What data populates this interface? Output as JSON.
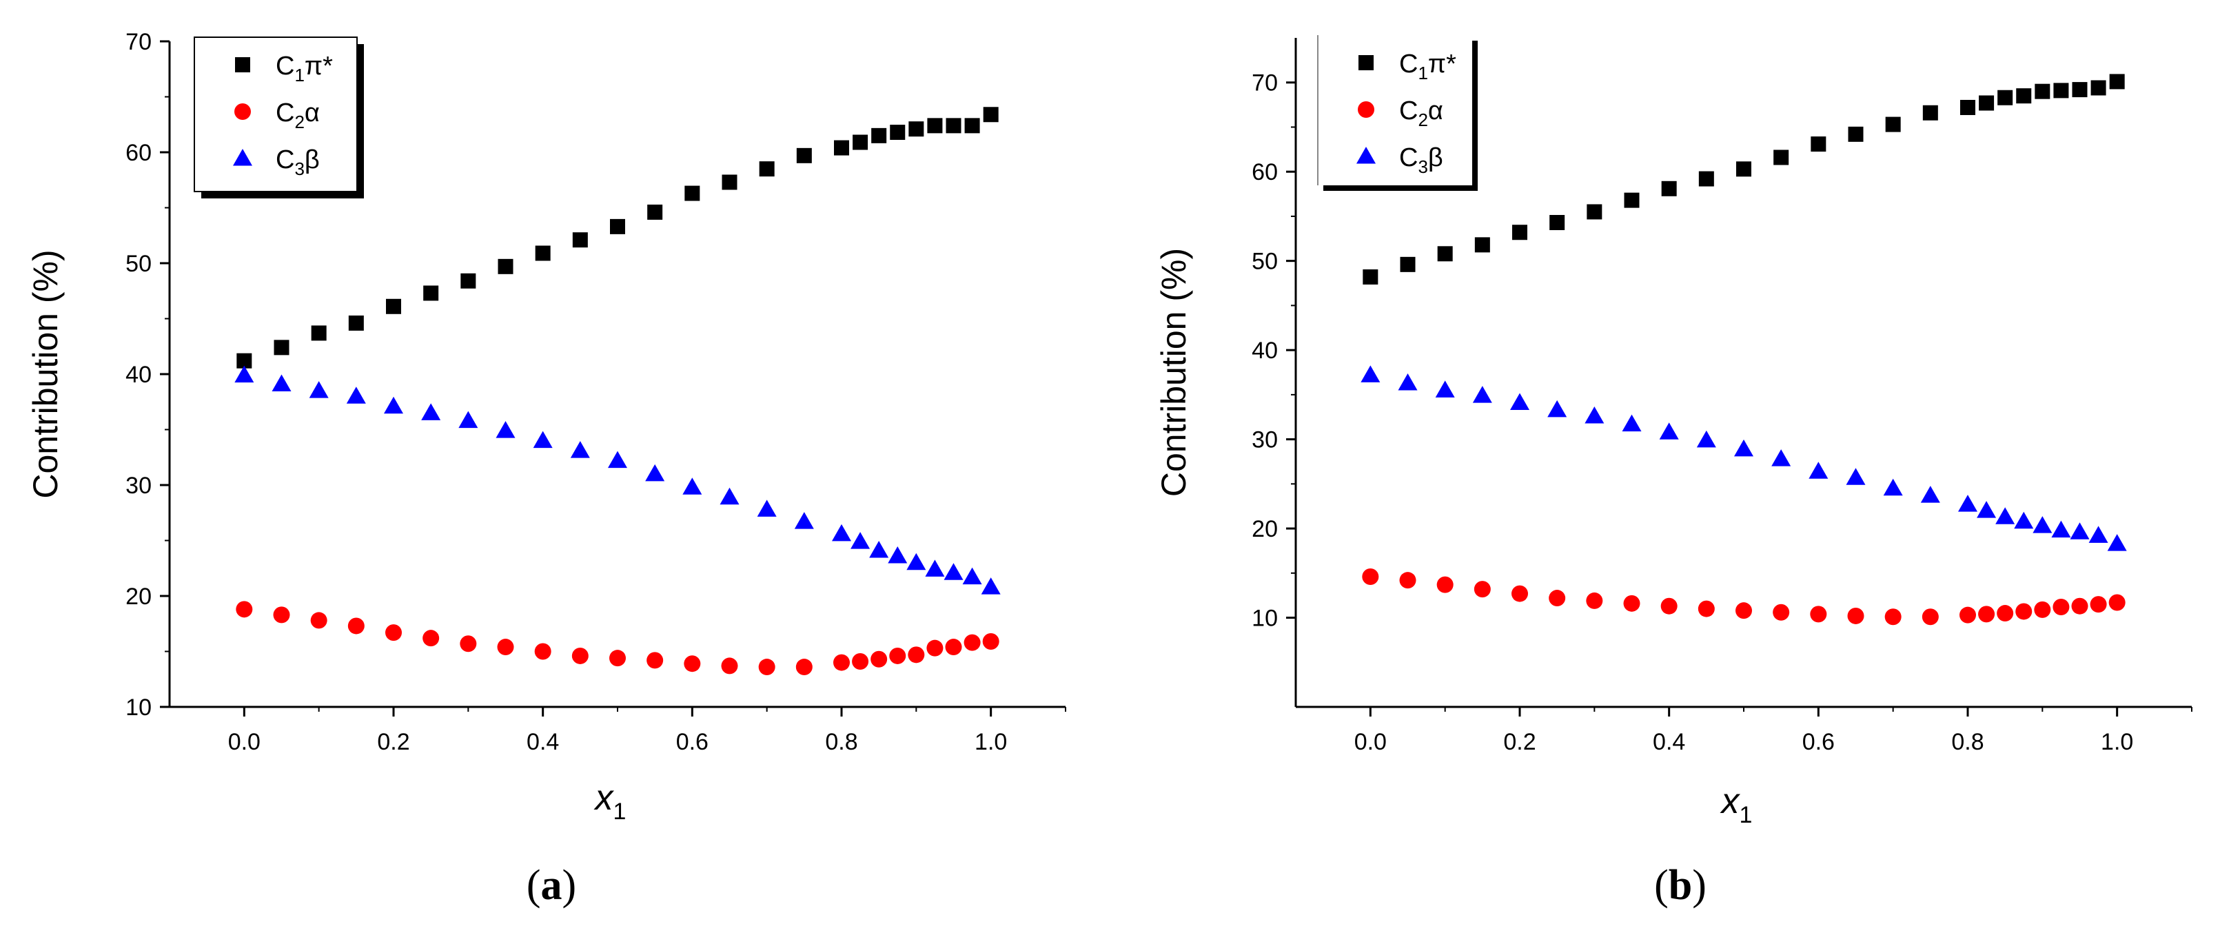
{
  "chart_data": [
    {
      "type": "scatter",
      "panel_label": "(a)",
      "panel_letter": "a",
      "xlabel": "x",
      "xlabel_sub": "1",
      "ylabel": "Contribution (%)",
      "xlim": [
        -0.1,
        1.1
      ],
      "ylim": [
        10,
        70
      ],
      "xticks": [
        0.0,
        0.2,
        0.4,
        0.6,
        0.8,
        1.0
      ],
      "xtick_labels": [
        "0.0",
        "0.2",
        "0.4",
        "0.6",
        "0.8",
        "1.0"
      ],
      "yticks": [
        10,
        20,
        30,
        40,
        50,
        60,
        70
      ],
      "ytick_labels": [
        "10",
        "20",
        "30",
        "40",
        "50",
        "60",
        "70"
      ],
      "legend_position": "top-left",
      "x": [
        0.0,
        0.05,
        0.1,
        0.15,
        0.2,
        0.25,
        0.3,
        0.35,
        0.4,
        0.45,
        0.5,
        0.55,
        0.6,
        0.65,
        0.7,
        0.75,
        0.8,
        0.825,
        0.85,
        0.875,
        0.9,
        0.925,
        0.95,
        0.975,
        1.0
      ],
      "series": [
        {
          "name": "C1π*",
          "base": "C",
          "sub": "1",
          "sym": "π*",
          "marker": "square",
          "color": "#000000",
          "values": [
            41.2,
            42.4,
            43.7,
            44.6,
            46.1,
            47.3,
            48.4,
            49.7,
            50.9,
            52.1,
            53.3,
            54.6,
            56.3,
            57.3,
            58.5,
            59.7,
            60.4,
            60.9,
            61.5,
            61.8,
            62.1,
            62.4,
            62.4,
            62.4,
            63.4
          ]
        },
        {
          "name": "C2α",
          "base": "C",
          "sub": "2",
          "sym": "α",
          "marker": "circle",
          "color": "#ff0000",
          "values": [
            18.8,
            18.3,
            17.8,
            17.3,
            16.7,
            16.2,
            15.7,
            15.4,
            15.0,
            14.6,
            14.4,
            14.2,
            13.9,
            13.7,
            13.6,
            13.6,
            14.0,
            14.1,
            14.3,
            14.6,
            14.7,
            15.3,
            15.4,
            15.8,
            15.9
          ]
        },
        {
          "name": "C3β",
          "base": "C",
          "sub": "3",
          "sym": "β",
          "marker": "triangle",
          "color": "#0000ff",
          "values": [
            39.9,
            39.1,
            38.5,
            38.0,
            37.1,
            36.5,
            35.8,
            34.9,
            34.0,
            33.1,
            32.2,
            31.0,
            29.8,
            28.9,
            27.8,
            26.7,
            25.6,
            24.9,
            24.1,
            23.6,
            23.0,
            22.4,
            22.1,
            21.7,
            20.8
          ]
        }
      ]
    },
    {
      "type": "scatter",
      "panel_label": "(b)",
      "panel_letter": "b",
      "xlabel": "x",
      "xlabel_sub": "1",
      "ylabel": "Contribution (%)",
      "xlim": [
        -0.1,
        1.1
      ],
      "ylim": [
        0,
        75
      ],
      "xticks": [
        0.0,
        0.2,
        0.4,
        0.6,
        0.8,
        1.0
      ],
      "xtick_labels": [
        "0.0",
        "0.2",
        "0.4",
        "0.6",
        "0.8",
        "1.0"
      ],
      "yticks": [
        10,
        20,
        30,
        40,
        50,
        60,
        70
      ],
      "ytick_labels": [
        "10",
        "20",
        "30",
        "40",
        "50",
        "60",
        "70"
      ],
      "legend_position": "top-left",
      "x": [
        0.0,
        0.05,
        0.1,
        0.15,
        0.2,
        0.25,
        0.3,
        0.35,
        0.4,
        0.45,
        0.5,
        0.55,
        0.6,
        0.65,
        0.7,
        0.75,
        0.8,
        0.825,
        0.85,
        0.875,
        0.9,
        0.925,
        0.95,
        0.975,
        1.0
      ],
      "series": [
        {
          "name": "C1π*",
          "base": "C",
          "sub": "1",
          "sym": "π*",
          "marker": "square",
          "color": "#000000",
          "values": [
            48.2,
            49.6,
            50.8,
            51.8,
            53.2,
            54.3,
            55.5,
            56.8,
            58.1,
            59.2,
            60.3,
            61.6,
            63.1,
            64.2,
            65.3,
            66.6,
            67.2,
            67.7,
            68.3,
            68.5,
            69.0,
            69.1,
            69.2,
            69.4,
            70.1
          ]
        },
        {
          "name": "C2α",
          "base": "C",
          "sub": "2",
          "sym": "α",
          "marker": "circle",
          "color": "#ff0000",
          "values": [
            14.6,
            14.2,
            13.7,
            13.2,
            12.7,
            12.2,
            11.9,
            11.6,
            11.3,
            11.0,
            10.8,
            10.6,
            10.4,
            10.2,
            10.1,
            10.1,
            10.3,
            10.4,
            10.5,
            10.7,
            10.9,
            11.2,
            11.3,
            11.5,
            11.7
          ]
        },
        {
          "name": "C3β",
          "base": "C",
          "sub": "3",
          "sym": "β",
          "marker": "triangle",
          "color": "#0000ff",
          "values": [
            37.2,
            36.3,
            35.5,
            34.9,
            34.1,
            33.3,
            32.6,
            31.7,
            30.8,
            29.9,
            28.9,
            27.8,
            26.4,
            25.7,
            24.5,
            23.7,
            22.7,
            22.0,
            21.3,
            20.8,
            20.3,
            19.8,
            19.6,
            19.2,
            18.3
          ]
        }
      ]
    }
  ]
}
